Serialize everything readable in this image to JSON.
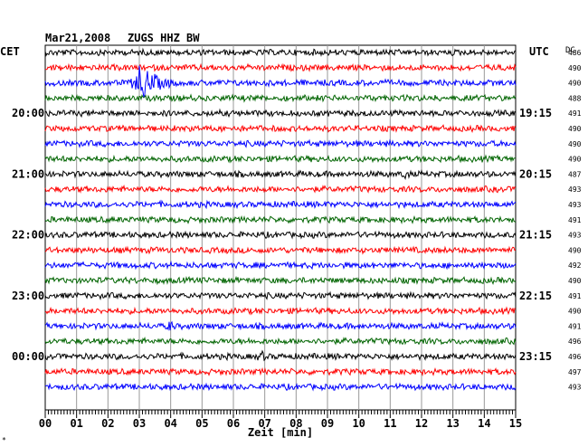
{
  "header": {
    "date": "Mar21,2008",
    "station": "ZUGS HHZ BW",
    "left_tz": "CET",
    "right_tz": "UTC",
    "dc_header": "DC"
  },
  "chart_data": {
    "type": "line",
    "title": "Mar21,2008  ZUGS HHZ BW",
    "xlabel": "Zeit [min]",
    "x_ticks": [
      "00",
      "01",
      "02",
      "03",
      "04",
      "05",
      "06",
      "07",
      "08",
      "09",
      "10",
      "11",
      "12",
      "13",
      "14",
      "15"
    ],
    "xlim": [
      0,
      15
    ],
    "grid": true,
    "trace_colors": [
      "#000000",
      "#ff0000",
      "#0000ff",
      "#006400"
    ],
    "left_time_labels": [
      "20:00",
      "21:00",
      "22:00",
      "23:00",
      "00:00"
    ],
    "right_time_labels": [
      "19:15",
      "20:15",
      "21:15",
      "22:15",
      "23:15"
    ],
    "time_label_rows": [
      4,
      8,
      12,
      16,
      20
    ],
    "dc_values": [
      "486",
      "490",
      "490",
      "488",
      "491",
      "490",
      "490",
      "490",
      "487",
      "493",
      "493",
      "491",
      "493",
      "490",
      "492",
      "490",
      "491",
      "490",
      "491",
      "496",
      "496",
      "497",
      "493"
    ],
    "rows": 23,
    "events": [
      {
        "row": 2,
        "minute": 3.0,
        "amplitude": "large"
      },
      {
        "row": 8,
        "minute": 11.5,
        "amplitude": "small"
      },
      {
        "row": 20,
        "minute": 6.9,
        "amplitude": "small"
      },
      {
        "row": 18,
        "minute": 4.0,
        "amplitude": "small"
      }
    ]
  },
  "footer": {
    "corner_mark": "*"
  }
}
